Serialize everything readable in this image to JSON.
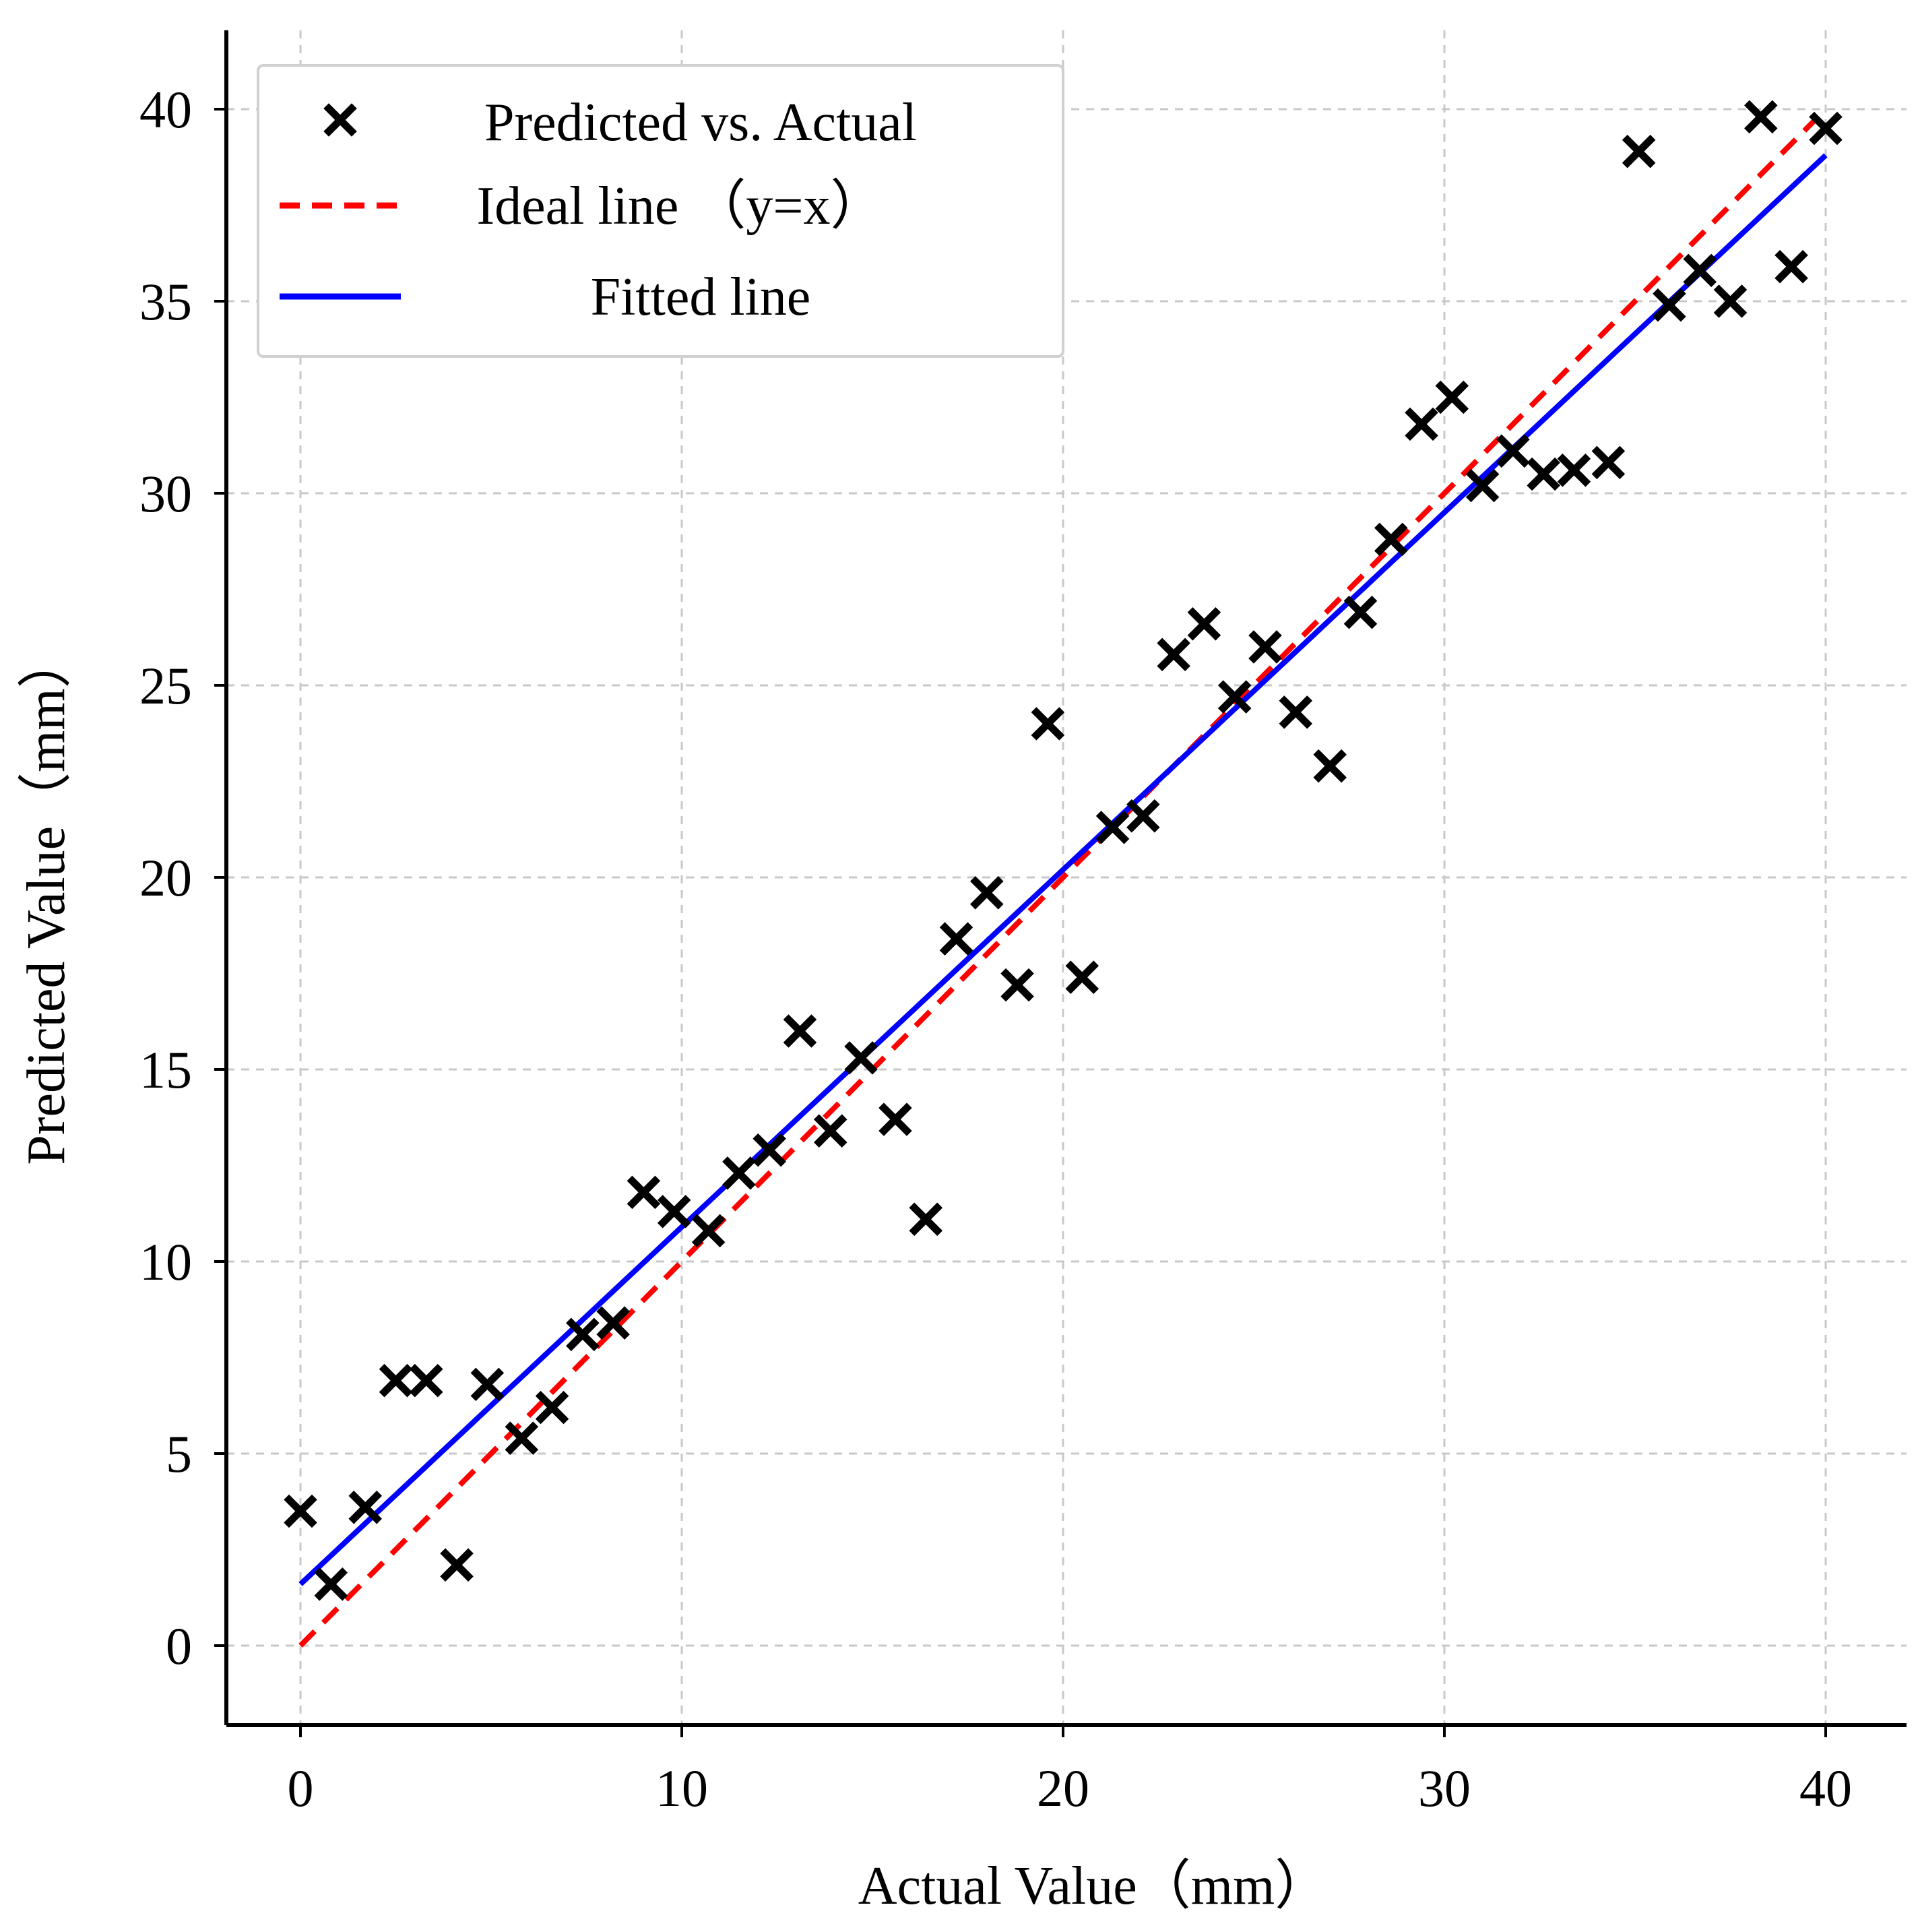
{
  "chart_data": {
    "type": "scatter",
    "title": "",
    "xlabel": "Actual Value（mm）",
    "ylabel": "Predicted Value（mm）",
    "xlim": [
      -2,
      41
    ],
    "ylim": [
      -2,
      42
    ],
    "xticks": [
      0,
      10,
      20,
      30,
      40
    ],
    "yticks": [
      0,
      5,
      10,
      15,
      20,
      25,
      30,
      35,
      40
    ],
    "grid": true,
    "legend_position": "top-left",
    "series": [
      {
        "name": "Predicted vs. Actual",
        "kind": "scatter",
        "marker": "x",
        "color": "#000000",
        "points": [
          [
            0.0,
            3.5
          ],
          [
            0.8,
            1.6
          ],
          [
            1.7,
            3.6
          ],
          [
            2.5,
            6.9
          ],
          [
            3.3,
            6.9
          ],
          [
            4.1,
            2.1
          ],
          [
            4.9,
            6.8
          ],
          [
            5.8,
            5.4
          ],
          [
            6.6,
            6.2
          ],
          [
            7.4,
            8.1
          ],
          [
            8.2,
            8.4
          ],
          [
            9.0,
            11.8
          ],
          [
            9.8,
            11.3
          ],
          [
            10.7,
            10.8
          ],
          [
            11.5,
            12.3
          ],
          [
            12.3,
            12.9
          ],
          [
            13.1,
            16.0
          ],
          [
            13.9,
            13.4
          ],
          [
            14.7,
            15.3
          ],
          [
            15.6,
            13.7
          ],
          [
            16.4,
            11.1
          ],
          [
            17.2,
            18.4
          ],
          [
            18.0,
            19.6
          ],
          [
            18.8,
            17.2
          ],
          [
            19.6,
            24.0
          ],
          [
            20.5,
            17.4
          ],
          [
            21.3,
            21.3
          ],
          [
            22.1,
            21.6
          ],
          [
            22.9,
            25.8
          ],
          [
            23.7,
            26.6
          ],
          [
            24.5,
            24.7
          ],
          [
            25.3,
            26.0
          ],
          [
            26.1,
            24.3
          ],
          [
            27.0,
            22.9
          ],
          [
            27.8,
            26.9
          ],
          [
            28.6,
            28.8
          ],
          [
            29.4,
            31.8
          ],
          [
            30.2,
            32.5
          ],
          [
            31.0,
            30.2
          ],
          [
            31.8,
            31.1
          ],
          [
            32.6,
            30.5
          ],
          [
            33.4,
            30.6
          ],
          [
            34.3,
            30.8
          ],
          [
            35.1,
            38.9
          ],
          [
            35.9,
            34.9
          ],
          [
            36.7,
            35.8
          ],
          [
            37.5,
            35.0
          ],
          [
            38.3,
            39.8
          ],
          [
            39.1,
            35.9
          ],
          [
            40.0,
            39.5
          ]
        ]
      },
      {
        "name": "Ideal line （y=x）",
        "kind": "line",
        "style": "dashed",
        "color": "#ff0000",
        "points": [
          [
            0,
            0
          ],
          [
            40,
            40
          ]
        ]
      },
      {
        "name": "Fitted line",
        "kind": "line",
        "style": "solid",
        "color": "#0000ff",
        "points": [
          [
            0,
            1.6
          ],
          [
            40,
            38.8
          ]
        ]
      }
    ]
  }
}
